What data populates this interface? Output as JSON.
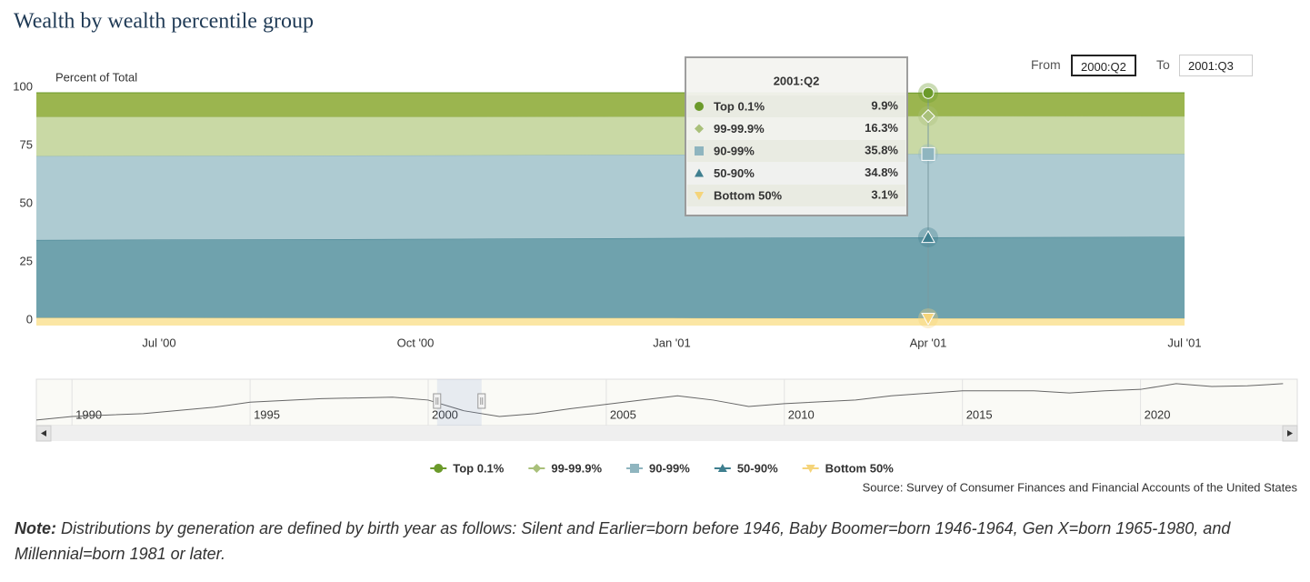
{
  "title": "Wealth by wealth percentile group",
  "chart_data": {
    "type": "area",
    "stacked": true,
    "y_label": "Percent of Total",
    "categories": [
      null,
      "Jul '00",
      "Oct '00",
      "Jan '01",
      "Apr '01",
      "Jul '01"
    ],
    "ylim": [
      0,
      100
    ],
    "yticks": [
      0,
      25,
      50,
      75,
      100
    ],
    "grid": false,
    "series": [
      {
        "name": "Top 0.1%",
        "color": "#9bb54f",
        "line_color": "#6b9a2a",
        "marker": "circle",
        "values": [
          10.3,
          10.3,
          10.3,
          10.2,
          9.9,
          10.1
        ],
        "value_labels": [
          null,
          null,
          null,
          null,
          "9.9%",
          null
        ]
      },
      {
        "name": "99-99.9%",
        "color": "#c9d9a5",
        "line_color": "#a9c07a",
        "marker": "diamond",
        "values": [
          17.0,
          16.8,
          16.6,
          16.4,
          16.3,
          16.2
        ],
        "value_labels": [
          null,
          null,
          null,
          null,
          "16.3%",
          null
        ]
      },
      {
        "name": "90-99%",
        "color": "#aecbd2",
        "line_color": "#8fb5bf",
        "marker": "square",
        "values": [
          36.1,
          36.0,
          35.9,
          35.8,
          35.8,
          35.6
        ],
        "value_labels": [
          null,
          null,
          null,
          null,
          "35.8%",
          null
        ]
      },
      {
        "name": "50-90%",
        "color": "#6fa2ad",
        "line_color": "#3f7f8f",
        "marker": "triangle",
        "values": [
          33.3,
          33.6,
          34.0,
          34.4,
          34.8,
          35.0
        ],
        "value_labels": [
          null,
          null,
          null,
          null,
          "34.8%",
          null
        ]
      },
      {
        "name": "Bottom 50%",
        "color": "#fbe6a4",
        "line_color": "#f5d47a",
        "marker": "triangle-down",
        "values": [
          3.3,
          3.3,
          3.2,
          3.2,
          3.1,
          3.1
        ],
        "value_labels": [
          null,
          null,
          null,
          null,
          "3.1%",
          null
        ]
      }
    ],
    "tooltip_title": "2001:Q2",
    "source": "Source: Survey of Consumer Finances and Financial Accounts of the United States",
    "navigator": {
      "type": "line",
      "color": "#666666",
      "xlim": [
        1989,
        2024.4
      ],
      "ylim": [
        8,
        14
      ],
      "xticks": [
        1990,
        1995,
        2000,
        2005,
        2010,
        2015,
        2020
      ],
      "x": [
        1989,
        1990,
        1992,
        1994,
        1995,
        1997,
        1999,
        2000,
        2001,
        2002,
        2003,
        2004,
        2006,
        2007,
        2008,
        2009,
        2010,
        2012,
        2013,
        2015,
        2017,
        2018,
        2019,
        2020,
        2021,
        2022,
        2023,
        2024
      ],
      "values": [
        8.4,
        8.9,
        9.3,
        10.2,
        10.9,
        11.4,
        11.6,
        11.2,
        9.7,
        8.9,
        9.3,
        10.0,
        11.2,
        11.8,
        11.2,
        10.3,
        10.7,
        11.2,
        11.8,
        12.5,
        12.5,
        12.2,
        12.5,
        12.7,
        13.5,
        13.1,
        13.2,
        13.5
      ]
    }
  },
  "range_selector": {
    "from_label": "From",
    "from": "2000:Q2",
    "to_label": "To",
    "to": "2001:Q3"
  },
  "note": {
    "label": "Note:",
    "text": "Distributions by generation are defined by birth year as follows: Silent and Earlier=born before 1946, Baby Boomer=born 1946-1964, Gen X=born 1965-1980, and Millennial=born 1981 or later."
  }
}
